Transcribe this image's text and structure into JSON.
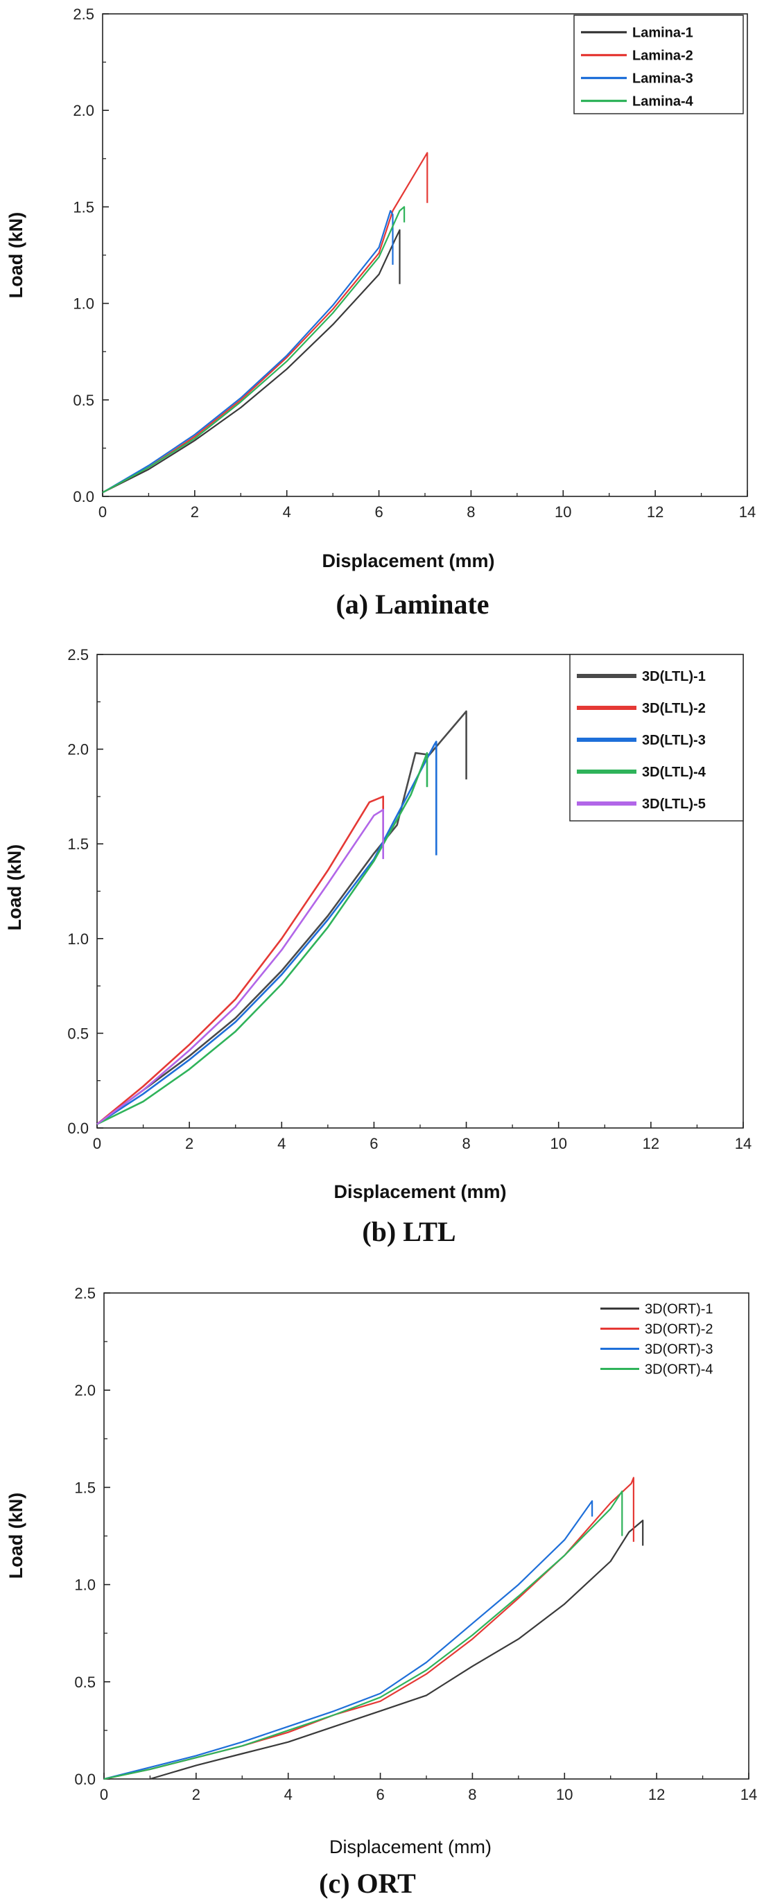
{
  "chart_data": [
    {
      "type": "line",
      "caption": "(a)  Laminate",
      "xlabel": "Displacement (mm)",
      "ylabel": "Load (kN)",
      "xlim": [
        0,
        14
      ],
      "ylim": [
        0,
        2.5
      ],
      "xticks": [
        "0",
        "2",
        "4",
        "6",
        "8",
        "10",
        "12",
        "14"
      ],
      "yticks": [
        "0.0",
        "0.5",
        "1.0",
        "1.5",
        "2.0",
        "2.5"
      ],
      "legend_position": "top-right",
      "series": [
        {
          "name": "Lamina-1",
          "color": "#3a3a3a",
          "x": [
            0,
            1,
            2,
            3,
            4,
            5,
            6,
            6.35,
            6.45,
            6.45
          ],
          "y": [
            0.02,
            0.14,
            0.29,
            0.46,
            0.66,
            0.89,
            1.15,
            1.33,
            1.38,
            1.1
          ]
        },
        {
          "name": "Lamina-2",
          "color": "#e53935",
          "x": [
            0,
            1,
            2,
            3,
            4,
            5,
            6,
            6.3,
            7.05,
            7.05
          ],
          "y": [
            0.02,
            0.15,
            0.31,
            0.5,
            0.72,
            0.97,
            1.26,
            1.48,
            1.78,
            1.52
          ]
        },
        {
          "name": "Lamina-3",
          "color": "#1e6fd9",
          "x": [
            0,
            1,
            2,
            3,
            4,
            5,
            6,
            6.25,
            6.3,
            6.3
          ],
          "y": [
            0.02,
            0.16,
            0.32,
            0.51,
            0.73,
            0.99,
            1.29,
            1.48,
            1.46,
            1.2
          ]
        },
        {
          "name": "Lamina-4",
          "color": "#2fb35a",
          "x": [
            0,
            1,
            2,
            3,
            4,
            5,
            6,
            6.45,
            6.55,
            6.55
          ],
          "y": [
            0.02,
            0.15,
            0.3,
            0.49,
            0.7,
            0.95,
            1.24,
            1.48,
            1.5,
            1.42
          ]
        }
      ]
    },
    {
      "type": "line",
      "caption": "(b)  LTL",
      "xlabel": "Displacement (mm)",
      "ylabel": "Load (kN)",
      "xlim": [
        0,
        14
      ],
      "ylim": [
        0,
        2.5
      ],
      "xticks": [
        "0",
        "2",
        "4",
        "6",
        "8",
        "10",
        "12",
        "14"
      ],
      "yticks": [
        "0.0",
        "0.5",
        "1.0",
        "1.5",
        "2.0",
        "2.5"
      ],
      "legend_position": "top-right",
      "series": [
        {
          "name": "3D(LTL)-1",
          "color": "#4a4a4a",
          "x": [
            0,
            1,
            2,
            3,
            4,
            5,
            6,
            6.5,
            6.9,
            7.2,
            8.0,
            8.0
          ],
          "y": [
            0.02,
            0.2,
            0.38,
            0.58,
            0.83,
            1.12,
            1.45,
            1.6,
            1.98,
            1.97,
            2.2,
            1.84
          ]
        },
        {
          "name": "3D(LTL)-2",
          "color": "#e53935",
          "x": [
            0,
            1,
            2,
            3,
            4,
            5,
            5.9,
            6.2,
            6.2
          ],
          "y": [
            0.02,
            0.22,
            0.44,
            0.68,
            1.0,
            1.36,
            1.72,
            1.75,
            1.48
          ]
        },
        {
          "name": "3D(LTL)-3",
          "color": "#1e6fd9",
          "x": [
            0,
            1,
            2,
            3,
            4,
            5,
            6,
            7.3,
            7.35,
            7.35
          ],
          "y": [
            0.02,
            0.18,
            0.36,
            0.56,
            0.81,
            1.1,
            1.42,
            2.02,
            2.04,
            1.44
          ]
        },
        {
          "name": "3D(LTL)-4",
          "color": "#2fb35a",
          "x": [
            0,
            1,
            2,
            3,
            4,
            5,
            6,
            6.8,
            7.15,
            7.15
          ],
          "y": [
            0.02,
            0.14,
            0.31,
            0.51,
            0.76,
            1.06,
            1.41,
            1.76,
            1.98,
            1.8
          ]
        },
        {
          "name": "3D(LTL)-5",
          "color": "#b266e8",
          "x": [
            0,
            1,
            2,
            3,
            4,
            5,
            6,
            6.2,
            6.2
          ],
          "y": [
            0.02,
            0.2,
            0.41,
            0.64,
            0.94,
            1.29,
            1.65,
            1.68,
            1.42
          ]
        }
      ]
    },
    {
      "type": "line",
      "caption": "(c)  ORT",
      "xlabel": "Displacement (mm)",
      "ylabel": "Load (kN)",
      "xlim": [
        0,
        14
      ],
      "ylim": [
        0,
        2.5
      ],
      "xticks": [
        "0",
        "2",
        "4",
        "6",
        "8",
        "10",
        "12",
        "14"
      ],
      "yticks": [
        "0.0",
        "0.5",
        "1.0",
        "1.5",
        "2.0",
        "2.5"
      ],
      "legend_position": "top-right",
      "series": [
        {
          "name": "3D(ORT)-1",
          "color": "#3a3a3a",
          "x": [
            1.0,
            2,
            3,
            4,
            5,
            6,
            7,
            8,
            9,
            10,
            11,
            11.4,
            11.7,
            11.7
          ],
          "y": [
            0.0,
            0.07,
            0.13,
            0.19,
            0.27,
            0.35,
            0.43,
            0.58,
            0.72,
            0.9,
            1.12,
            1.27,
            1.33,
            1.2
          ]
        },
        {
          "name": "3D(ORT)-2",
          "color": "#e53935",
          "x": [
            0,
            1,
            2,
            3,
            4,
            5,
            6,
            7,
            8,
            9,
            10,
            11,
            11.45,
            11.5,
            11.5
          ],
          "y": [
            0.0,
            0.05,
            0.11,
            0.17,
            0.24,
            0.33,
            0.4,
            0.54,
            0.72,
            0.93,
            1.15,
            1.42,
            1.52,
            1.55,
            1.22
          ]
        },
        {
          "name": "3D(ORT)-3",
          "color": "#1e6fd9",
          "x": [
            0,
            1,
            2,
            3,
            4,
            5,
            6,
            7,
            8,
            9,
            10,
            10.6,
            10.6
          ],
          "y": [
            0.0,
            0.06,
            0.12,
            0.19,
            0.27,
            0.35,
            0.44,
            0.6,
            0.8,
            1.0,
            1.23,
            1.43,
            1.35
          ]
        },
        {
          "name": "3D(ORT)-4",
          "color": "#2fb35a",
          "x": [
            0,
            1,
            2,
            3,
            4,
            5,
            6,
            7,
            8,
            9,
            10,
            11,
            11.25,
            11.25
          ],
          "y": [
            0.0,
            0.05,
            0.11,
            0.17,
            0.25,
            0.33,
            0.42,
            0.56,
            0.74,
            0.94,
            1.15,
            1.39,
            1.48,
            1.25
          ]
        }
      ]
    }
  ]
}
